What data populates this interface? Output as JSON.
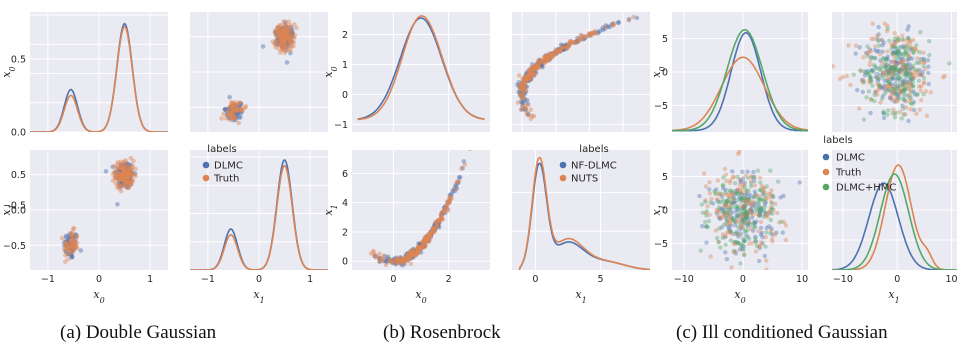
{
  "captions": [
    "(a) Double Gaussian",
    "(b) Rosenbrock",
    "(c) Ill conditioned Gaussian"
  ],
  "colors": {
    "blue": "#4c72b0",
    "orange": "#dd8452",
    "green": "#55a868",
    "panel_bg": "#eaeaf2",
    "grid": "#ffffff"
  },
  "chart_data": [
    {
      "type": "scatter",
      "panel": "Double Gaussian",
      "variables": [
        "x_0",
        "x_1"
      ],
      "axis_labels": {
        "row0": "x_0",
        "row1": "x_1",
        "col0": "x_0",
        "col1": "x_1"
      },
      "xlim": [
        -1.35,
        1.35
      ],
      "ylim": [
        -0.85,
        0.85
      ],
      "kde_ylim": [
        0,
        0.8
      ],
      "ticks": {
        "values": [
          -1,
          0,
          1
        ],
        "labels": [
          "−1",
          "0",
          "1"
        ]
      },
      "yticks": {
        "values": [
          -0.5,
          0,
          0.5
        ],
        "labels": [
          "−0.5",
          "0.0",
          "0.5"
        ]
      },
      "legend": {
        "title": "labels",
        "entries": [
          "DLMC",
          "Truth"
        ]
      },
      "series": [
        {
          "name": "DLMC",
          "color": "#4c72b0",
          "kde_x0": {
            "peaks": [
              {
                "mu": -0.55,
                "sd": 0.13,
                "h": 0.29
              },
              {
                "mu": 0.5,
                "sd": 0.15,
                "h": 0.74
              }
            ]
          },
          "kde_x1": {
            "peaks": [
              {
                "mu": -0.55,
                "sd": 0.13,
                "h": 0.29
              },
              {
                "mu": 0.5,
                "sd": 0.15,
                "h": 0.78
              }
            ]
          },
          "clusters": [
            {
              "cx": -0.55,
              "cy": -0.5,
              "sx": 0.07,
              "sy": 0.1,
              "n": 55
            },
            {
              "cx": 0.5,
              "cy": 0.5,
              "sx": 0.09,
              "sy": 0.1,
              "n": 130
            }
          ]
        },
        {
          "name": "Truth",
          "color": "#dd8452",
          "kde_x0": {
            "peaks": [
              {
                "mu": -0.55,
                "sd": 0.13,
                "h": 0.25
              },
              {
                "mu": 0.5,
                "sd": 0.15,
                "h": 0.72
              }
            ]
          },
          "kde_x1": {
            "peaks": [
              {
                "mu": -0.55,
                "sd": 0.13,
                "h": 0.25
              },
              {
                "mu": 0.5,
                "sd": 0.15,
                "h": 0.74
              }
            ]
          },
          "clusters": [
            {
              "cx": -0.55,
              "cy": -0.5,
              "sx": 0.07,
              "sy": 0.1,
              "n": 55
            },
            {
              "cx": 0.5,
              "cy": 0.5,
              "sx": 0.09,
              "sy": 0.1,
              "n": 130
            }
          ]
        }
      ]
    },
    {
      "type": "scatter",
      "panel": "Rosenbrock",
      "variables": [
        "x_0",
        "x_1"
      ],
      "axis_labels": {
        "row0": "x_0",
        "row1": "x_1",
        "col0": "x_0",
        "col1": "x_1"
      },
      "x0_lim": [
        -1.5,
        3.5
      ],
      "x1_lim": [
        -0.6,
        7.6
      ],
      "x1_kde_xlim": [
        -1.8,
        8.8
      ],
      "kde_ylim": [
        0,
        2.75
      ],
      "kde_ylim_x1": [
        0,
        0.62
      ],
      "x0_ticks": {
        "values": [
          0,
          2
        ],
        "labels": [
          "0",
          "2"
        ]
      },
      "x0_yticks": {
        "values": [
          -1,
          0,
          1,
          2
        ],
        "labels": [
          "−1",
          "0",
          "1",
          "2"
        ]
      },
      "x1_yticks": {
        "values": [
          0,
          2,
          4,
          6
        ],
        "labels": [
          "0",
          "2",
          "4",
          "6"
        ]
      },
      "x1_kde_ticks": {
        "values": [
          0,
          5
        ],
        "labels": [
          "0",
          "5"
        ]
      },
      "legend": {
        "title": "labels",
        "entries": [
          "NF-DLMC",
          "NUTS"
        ]
      },
      "series": [
        {
          "name": "NF-DLMC",
          "color": "#4c72b0",
          "kde_x0": {
            "mu": 1.0,
            "sd": 0.75,
            "h": 2.55
          },
          "kde_x1": {
            "peak": 0.55
          }
        },
        {
          "name": "NUTS",
          "color": "#dd8452",
          "kde_x0": {
            "mu": 1.05,
            "sd": 0.72,
            "h": 2.62
          },
          "kde_x1": {
            "peak": 0.58
          }
        }
      ]
    },
    {
      "type": "scatter",
      "panel": "Ill conditioned Gaussian",
      "variables": [
        "x_0",
        "x_1"
      ],
      "axis_labels": {
        "row0": "x_0",
        "row1": "x_1",
        "col0": "x_0",
        "col1": "x_1"
      },
      "lim": [
        -12,
        11
      ],
      "ylim": [
        -9,
        9
      ],
      "kde_ylim": [
        0,
        0.2
      ],
      "ticks": {
        "values": [
          -10,
          0,
          10
        ],
        "labels": [
          "−10",
          "0",
          "10"
        ]
      },
      "yticks": {
        "values": [
          -5,
          0,
          5
        ],
        "labels": [
          "−5",
          "0",
          "5"
        ]
      },
      "legend": {
        "title": "labels",
        "entries": [
          "DLMC",
          "Truth",
          "DLMC+HMC"
        ]
      },
      "series": [
        {
          "name": "DLMC",
          "color": "#4c72b0",
          "kde_x0": {
            "mu": 0.5,
            "sd": 2.5,
            "h": 0.16
          },
          "kde_x1": {
            "mu": -2.5,
            "sd": 2.7,
            "h": 0.145
          }
        },
        {
          "name": "Truth",
          "color": "#dd8452",
          "kde_x0": {
            "mu": 0.0,
            "sd": 3.6,
            "h": 0.12
          },
          "kde_x1": {
            "mu": 0.2,
            "sd": 2.4,
            "h": 0.175
          }
        },
        {
          "name": "DLMC+HMC",
          "color": "#55a868",
          "kde_x0": {
            "mu": 0.3,
            "sd": 3.0,
            "h": 0.165
          },
          "kde_x1": {
            "mu": -0.5,
            "sd": 2.6,
            "h": 0.16
          }
        }
      ]
    }
  ]
}
